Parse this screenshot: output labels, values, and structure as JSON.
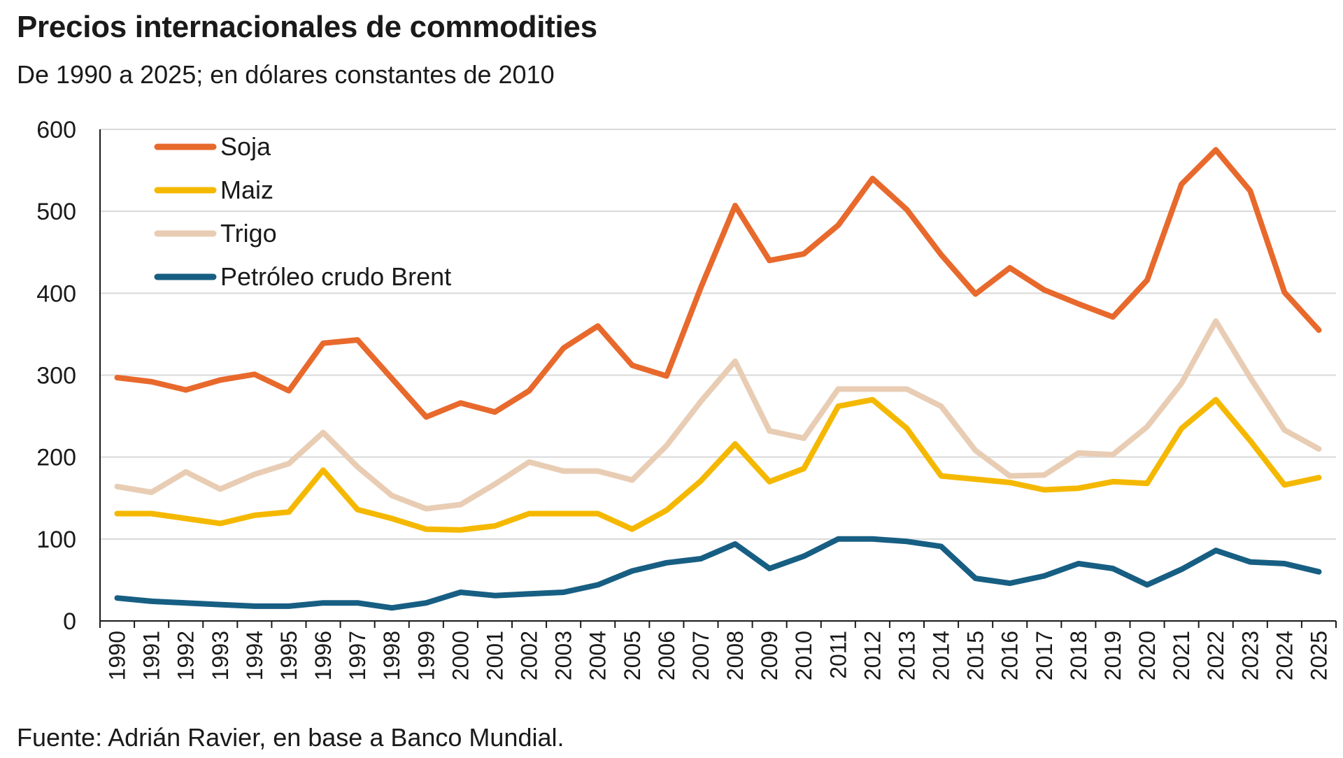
{
  "header": {
    "title": "Precios internacionales de commodities",
    "subtitle": "De 1990 a 2025; en dólares constantes de 2010"
  },
  "footer": {
    "source": "Fuente: Adrián Ravier, en base a Banco Mundial."
  },
  "chart_data": {
    "type": "line",
    "title": "Precios internacionales de commodities",
    "subtitle": "De 1990 a 2025; en dólares constantes de 2010",
    "xlabel": "",
    "ylabel": "",
    "ylim": [
      0,
      600
    ],
    "yticks": [
      0,
      100,
      200,
      300,
      400,
      500,
      600
    ],
    "grid": "horizontal",
    "legend_position": "top-left",
    "x": [
      "1990",
      "1991",
      "1992",
      "1993",
      "1994",
      "1995",
      "1996",
      "1997",
      "1998",
      "1999",
      "2000",
      "2001",
      "2002",
      "2003",
      "2004",
      "2005",
      "2006",
      "2007",
      "2008",
      "2009",
      "2010",
      "2011",
      "2012",
      "2013",
      "2014",
      "2015",
      "2016",
      "2017",
      "2018",
      "2019",
      "2020",
      "2021",
      "2022",
      "2023",
      "2024",
      "2025"
    ],
    "series": [
      {
        "name": "Soja",
        "color": "#E8692C",
        "values": [
          297,
          292,
          282,
          294,
          301,
          281,
          339,
          343,
          296,
          249,
          266,
          255,
          281,
          333,
          360,
          312,
          299,
          407,
          507,
          440,
          448,
          483,
          540,
          502,
          447,
          399,
          431,
          404,
          387,
          371,
          416,
          533,
          575,
          525,
          401,
          355
        ]
      },
      {
        "name": "Maiz",
        "color": "#F5B800",
        "values": [
          131,
          131,
          125,
          119,
          129,
          133,
          184,
          136,
          125,
          112,
          111,
          116,
          131,
          131,
          131,
          112,
          135,
          171,
          216,
          170,
          186,
          262,
          270,
          235,
          177,
          173,
          169,
          160,
          162,
          170,
          168,
          235,
          270,
          220,
          166,
          175
        ]
      },
      {
        "name": "Trigo",
        "color": "#E8CDB4",
        "values": [
          164,
          157,
          182,
          161,
          179,
          192,
          230,
          188,
          153,
          137,
          142,
          167,
          194,
          183,
          183,
          172,
          214,
          268,
          317,
          232,
          223,
          283,
          283,
          283,
          262,
          208,
          177,
          178,
          205,
          203,
          237,
          290,
          366,
          297,
          233,
          210
        ]
      },
      {
        "name": "Petróleo crudo Brent",
        "color": "#175E83",
        "values": [
          28,
          24,
          22,
          20,
          18,
          18,
          22,
          22,
          16,
          22,
          35,
          31,
          33,
          35,
          44,
          61,
          71,
          76,
          94,
          64,
          79,
          100,
          100,
          97,
          91,
          52,
          46,
          55,
          70,
          64,
          44,
          63,
          86,
          72,
          70,
          60
        ]
      }
    ]
  }
}
